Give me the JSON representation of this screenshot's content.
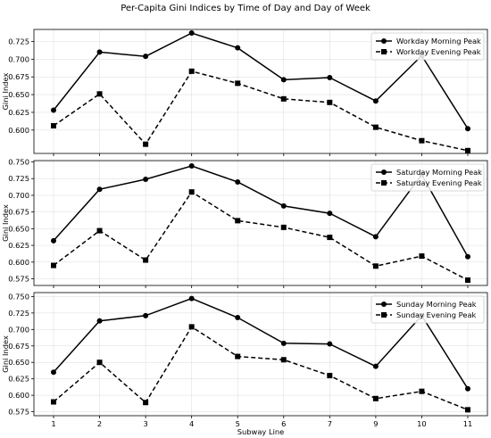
{
  "chart_data": {
    "type": "line",
    "title": "Per-Capita Gini Indices by Time of Day and Day of Week",
    "xlabel": "Subway Line",
    "categories": [
      "1",
      "2",
      "3",
      "4",
      "5",
      "6",
      "7",
      "9",
      "10",
      "11"
    ],
    "grid": true,
    "legend_placement": "top-right",
    "line_color": "#000000",
    "panels": [
      {
        "ylabel": "Gini Index",
        "ylim": [
          0.567,
          0.742
        ],
        "yticks": [
          "0.600",
          "0.625",
          "0.650",
          "0.675",
          "0.700",
          "0.725"
        ],
        "series": [
          {
            "name": "Workday Morning Peak",
            "style": "solid",
            "marker": "circle",
            "values": [
              0.628,
              0.71,
              0.704,
              0.737,
              0.716,
              0.671,
              0.674,
              0.641,
              0.705,
              0.602
            ]
          },
          {
            "name": "Workday Evening Peak",
            "style": "dashed",
            "marker": "square",
            "values": [
              0.606,
              0.651,
              0.58,
              0.683,
              0.666,
              0.644,
              0.639,
              0.604,
              0.585,
              0.571
            ]
          }
        ]
      },
      {
        "ylabel": "Gini Index",
        "ylim": [
          0.565,
          0.752
        ],
        "yticks": [
          "0.575",
          "0.600",
          "0.625",
          "0.650",
          "0.675",
          "0.700",
          "0.725",
          "0.750"
        ],
        "series": [
          {
            "name": "Saturday Morning Peak",
            "style": "solid",
            "marker": "circle",
            "values": [
              0.632,
              0.709,
              0.724,
              0.744,
              0.72,
              0.684,
              0.673,
              0.638,
              0.731,
              0.608
            ]
          },
          {
            "name": "Saturday Evening Peak",
            "style": "dashed",
            "marker": "square",
            "values": [
              0.595,
              0.647,
              0.603,
              0.705,
              0.662,
              0.652,
              0.637,
              0.594,
              0.609,
              0.573
            ]
          }
        ]
      },
      {
        "ylabel": "Gini Index",
        "ylim": [
          0.569,
          0.756
        ],
        "yticks": [
          "0.575",
          "0.600",
          "0.625",
          "0.650",
          "0.675",
          "0.700",
          "0.725",
          "0.750"
        ],
        "series": [
          {
            "name": "Sunday Morning Peak",
            "style": "solid",
            "marker": "circle",
            "values": [
              0.635,
              0.713,
              0.721,
              0.747,
              0.718,
              0.679,
              0.678,
              0.644,
              0.721,
              0.61
            ]
          },
          {
            "name": "Sunday Evening Peak",
            "style": "dashed",
            "marker": "square",
            "values": [
              0.59,
              0.65,
              0.589,
              0.704,
              0.659,
              0.654,
              0.63,
              0.595,
              0.606,
              0.578
            ]
          }
        ]
      }
    ]
  }
}
